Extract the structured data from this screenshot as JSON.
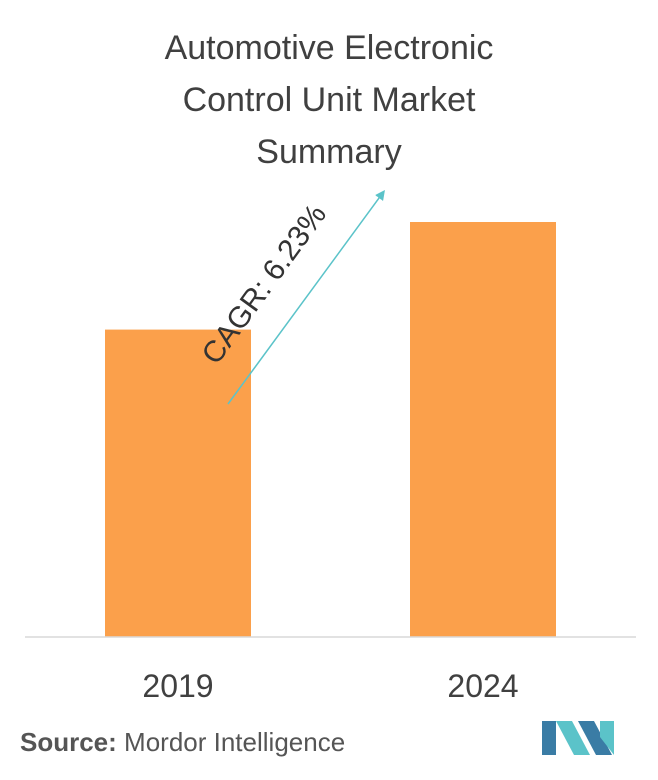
{
  "header": {
    "title_lines": [
      "Automotive Electronic",
      "Control Unit Market",
      "Summary"
    ]
  },
  "chart_data": {
    "type": "bar",
    "title": "Automotive Electronic Control Unit Market Summary",
    "categories": [
      "2019",
      "2024"
    ],
    "values": [
      1.0,
      1.35
    ],
    "annotation": "CAGR: 6.23%",
    "colors": {
      "bar": "#FBA04B",
      "arrow": "#5BC3C9",
      "axis": "#D9D9D9"
    },
    "grid": false,
    "legend": "none"
  },
  "footer": {
    "source_label": "Source:",
    "source_value": "Mordor Intelligence"
  },
  "logo": {
    "icon": "mordor-intelligence-logo",
    "colors": [
      "#3A7CA5",
      "#5BC3C9"
    ]
  }
}
